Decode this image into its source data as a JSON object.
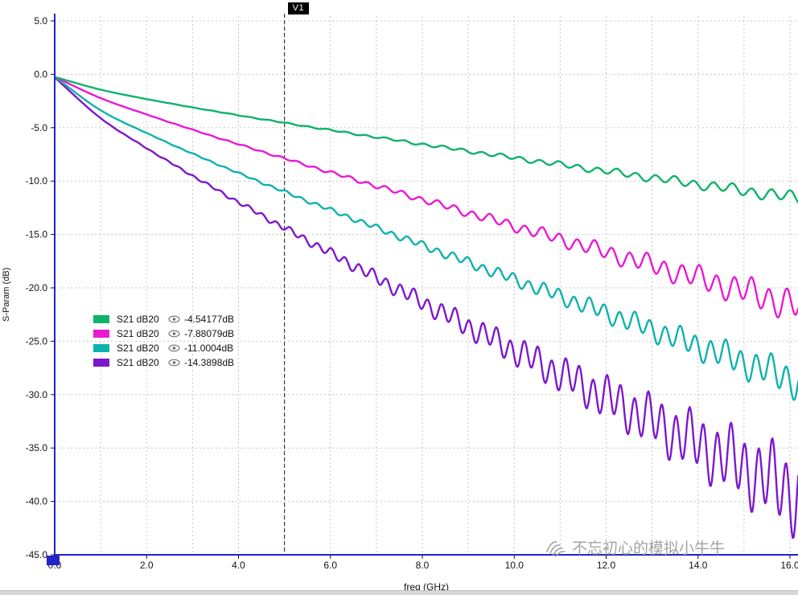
{
  "marker": {
    "label": "V1"
  },
  "legend": {
    "rows": [
      {
        "label": "S21 dB20",
        "value": "-4.54177dB"
      },
      {
        "label": "S21 dB20",
        "value": "-7.88079dB"
      },
      {
        "label": "S21 dB20",
        "value": "-11.0004dB"
      },
      {
        "label": "S21 dB20",
        "value": "-14.3898dB"
      }
    ]
  },
  "watermark": {
    "text": "不忘初心的模拟小牛牛"
  },
  "chart_data": {
    "type": "line",
    "title": "",
    "xlabel": "freq (GHz)",
    "ylabel": "S-Param (dB)",
    "x_range": [
      0,
      16
    ],
    "y_range": [
      -45,
      5
    ],
    "grid": true,
    "grid_color": "#c6c6c6",
    "axis_color": "#2323cc",
    "marker_line_color": "#1a1a1a",
    "legend_position": "inside-left-middle",
    "x_minor_grid_step_GHz": 1,
    "y_grid_step_dB": 5,
    "x_tick_values": [
      0,
      2,
      4,
      6,
      8,
      10,
      12,
      14,
      16
    ],
    "x_tick_labels": [
      "0.0",
      "2.0",
      "4.0",
      "6.0",
      "8.0",
      "10.0",
      "12.0",
      "14.0",
      "16.0"
    ],
    "y_tick_values": [
      5,
      0,
      -5,
      -10,
      -15,
      -20,
      -25,
      -30,
      -35,
      -40,
      -45
    ],
    "y_tick_labels": [
      "5.0",
      "0.0",
      "-5.0",
      "-10.0",
      "-15.0",
      "-20.0",
      "-25.0",
      "-30.0",
      "-35.0",
      "-40.0",
      "-45.0"
    ],
    "marker": {
      "label": "V1",
      "freq_GHz": 5.0,
      "readouts_dB": [
        -4.54177,
        -7.88079,
        -11.0004,
        -14.3898
      ]
    },
    "x": [
      0,
      1,
      2,
      3,
      4,
      5,
      6,
      7,
      8,
      9,
      10,
      11,
      12,
      13,
      14,
      15,
      16
    ],
    "series": [
      {
        "name": "S21 dB20",
        "color": "#0fb269",
        "values": [
          -0.25,
          -1.44,
          -2.32,
          -3.1,
          -3.84,
          -4.54,
          -5.23,
          -5.89,
          -6.55,
          -7.19,
          -7.83,
          -8.45,
          -9.07,
          -9.69,
          -10.3,
          -10.9,
          -11.5
        ],
        "ripple": {
          "amp": 0.5,
          "period": 0.42,
          "power": 2.2,
          "phase": 0.8
        }
      },
      {
        "name": "S21 dB20",
        "color": "#ea19d2",
        "values": [
          -0.25,
          -2.23,
          -3.76,
          -5.19,
          -6.55,
          -7.88,
          -9.18,
          -10.46,
          -11.72,
          -12.97,
          -14.21,
          -15.44,
          -16.67,
          -17.88,
          -19.09,
          -20.29,
          -21.49
        ],
        "ripple": {
          "amp": 1.3,
          "period": 0.38,
          "power": 2.4,
          "phase": 2.1
        }
      },
      {
        "name": "S21 dB20",
        "color": "#0fb2ad",
        "values": [
          -0.25,
          -3.37,
          -5.5,
          -7.43,
          -9.25,
          -11.0,
          -12.7,
          -14.37,
          -16.01,
          -17.62,
          -19.22,
          -20.8,
          -22.36,
          -23.91,
          -25.45,
          -26.98,
          -28.5
        ],
        "ripple": {
          "amp": 1.4,
          "period": 0.33,
          "power": 2.2,
          "phase": 0.0
        }
      },
      {
        "name": "S21 dB20",
        "color": "#7d18ce",
        "values": [
          -0.3,
          -4.11,
          -6.92,
          -9.5,
          -11.98,
          -14.39,
          -16.74,
          -19.06,
          -21.35,
          -23.61,
          -25.85,
          -28.08,
          -30.28,
          -32.48,
          -34.66,
          -36.83,
          -39.0
        ],
        "ripple": {
          "amp": 3.2,
          "period": 0.3,
          "power": 2.2,
          "phase": 1.2
        }
      }
    ]
  }
}
